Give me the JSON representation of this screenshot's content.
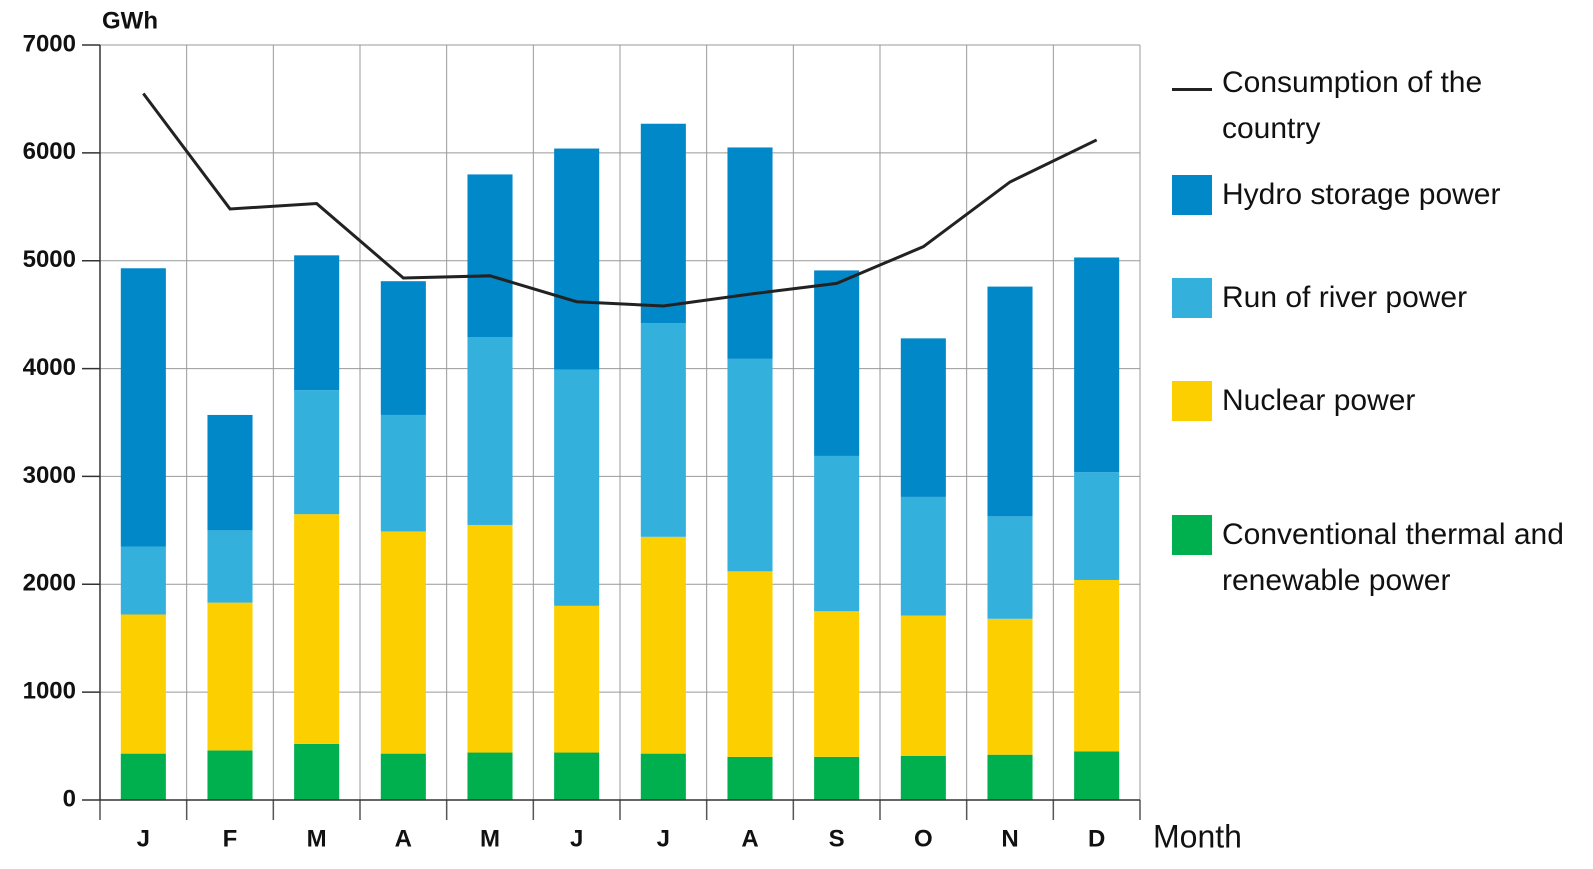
{
  "chart_data": {
    "type": "bar",
    "stacked": true,
    "y_label": "GWh",
    "x_label": "Month",
    "categories": [
      "J",
      "F",
      "M",
      "A",
      "M",
      "J",
      "J",
      "A",
      "S",
      "O",
      "N",
      "D"
    ],
    "series": [
      {
        "name": "Conventional thermal and renewable power",
        "color": "#00b04f",
        "values": [
          430,
          460,
          520,
          430,
          440,
          440,
          430,
          400,
          400,
          410,
          420,
          450
        ]
      },
      {
        "name": "Nuclear power",
        "color": "#fcd000",
        "values": [
          1290,
          1370,
          2130,
          2060,
          2110,
          1360,
          2010,
          1720,
          1350,
          1300,
          1260,
          1590
        ]
      },
      {
        "name": "Run of river power",
        "color": "#33b0dc",
        "values": [
          630,
          670,
          1150,
          1080,
          1740,
          2190,
          1980,
          1970,
          1440,
          1100,
          950,
          1000
        ]
      },
      {
        "name": "Hydro storage power",
        "color": "#0088c8",
        "values": [
          2580,
          1070,
          1250,
          1240,
          1510,
          2050,
          1850,
          1960,
          1720,
          1470,
          2130,
          1990
        ]
      },
      {
        "name": "Consumption of the country",
        "type": "line",
        "color": "#222222",
        "values": [
          6550,
          5480,
          5530,
          4840,
          4860,
          4620,
          4580,
          4690,
          4790,
          5130,
          5730,
          6120
        ]
      }
    ],
    "ylim": [
      0,
      7000
    ],
    "yticks": [
      0,
      1000,
      2000,
      3000,
      4000,
      5000,
      6000,
      7000
    ],
    "grid": true,
    "legend": "right"
  }
}
